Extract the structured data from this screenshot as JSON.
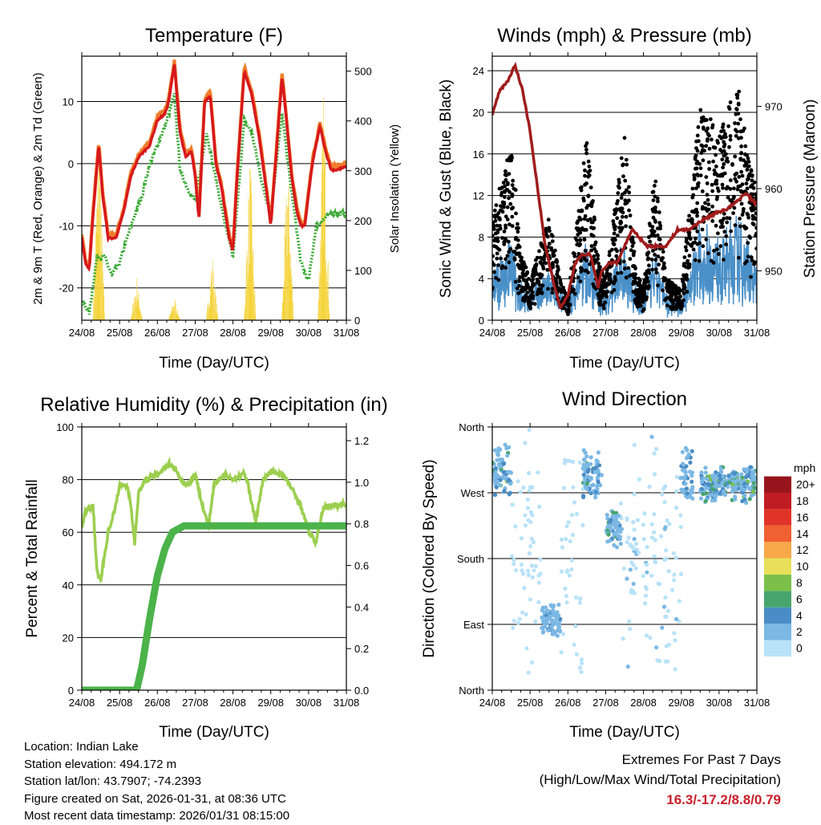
{
  "footer": {
    "location": "Location: Indian Lake",
    "elevation": "Station elevation: 494.172 m",
    "latlon": "Station lat/lon: 43.7907; -74.2393",
    "created": "Figure created on Sat, 2026-01-31, at 08:36 UTC",
    "recent": "Most recent data timestamp: 2026/01/31 08:15:00",
    "extremes_title": "Extremes For Past 7 Days",
    "extremes_sub": "(High/Low/Max Wind/Total Precipitation)",
    "extremes_value": "16.3/-17.2/8.8/0.79"
  },
  "chart_data": [
    {
      "type": "line",
      "title": "Temperature (F)",
      "xlabel": "Time (Day/UTC)",
      "ylabel": "2m & 9m T (Red, Orange) & 2m Td (Green)",
      "ylabel_right": "Solar Insolation (Yellow)",
      "xticks": [
        "24/08",
        "25/08",
        "26/08",
        "27/08",
        "28/08",
        "29/08",
        "30/08",
        "31/08"
      ],
      "xlim": [
        0,
        7
      ],
      "ylim": [
        -25.2,
        17.3
      ],
      "ylim_right": [
        0,
        530
      ],
      "yticks": [
        -20,
        -10,
        0,
        10
      ],
      "yticks_right": [
        0,
        100,
        200,
        300,
        400,
        500
      ],
      "colors": {
        "t2": "#d7191c",
        "t9": "#f07d2b",
        "td": "#3aaa35",
        "solar": "#f5d33a"
      },
      "series": [
        {
          "name": "2m T",
          "x": [
            0,
            0.1,
            0.2,
            0.3,
            0.45,
            0.55,
            0.7,
            0.9,
            1.1,
            1.3,
            1.5,
            1.8,
            2.0,
            2.2,
            2.3,
            2.45,
            2.6,
            2.75,
            2.9,
            3.0,
            3.1,
            3.25,
            3.4,
            3.55,
            3.7,
            3.9,
            4.0,
            4.1,
            4.3,
            4.5,
            4.7,
            4.9,
            5.0,
            5.1,
            5.3,
            5.4,
            5.55,
            5.7,
            5.8,
            5.9,
            6.1,
            6.3,
            6.45,
            6.6,
            6.75,
            7
          ],
          "y": [
            -12,
            -16,
            -17,
            -8,
            3,
            -5,
            -12,
            -12,
            -8,
            -2,
            1,
            3,
            7,
            8,
            10,
            16,
            5,
            1,
            2,
            -2,
            -9,
            10,
            11,
            0,
            -4,
            -12,
            -14,
            -3,
            15,
            11,
            4,
            -5,
            -10,
            -2,
            14,
            8,
            -2,
            -8,
            -10,
            -10,
            0,
            6,
            2,
            -1,
            -1,
            -0.5
          ]
        },
        {
          "name": "2m Td",
          "x": [
            0,
            0.2,
            0.4,
            0.6,
            0.8,
            1,
            1.3,
            1.6,
            1.8,
            2,
            2.2,
            2.45,
            2.6,
            2.8,
            3,
            3.3,
            3.5,
            3.8,
            4,
            4.3,
            4.5,
            4.8,
            5,
            5.3,
            5.5,
            5.8,
            6,
            6.2,
            6.4,
            6.6,
            7
          ],
          "y": [
            -22,
            -24,
            -15,
            -15,
            -18,
            -16,
            -10,
            -5,
            0,
            3,
            6,
            11,
            -1,
            -4,
            -6,
            5,
            -1,
            -10,
            -15,
            7,
            5,
            -4,
            -8,
            8,
            -2,
            -16,
            -19,
            -10,
            -9,
            -8,
            -8
          ]
        },
        {
          "name": "Solar",
          "peak_days": [
            0.45,
            1.45,
            2.45,
            3.45,
            4.45,
            5.45,
            6.4
          ],
          "peak_values": [
            420,
            90,
            50,
            140,
            350,
            350,
            490
          ]
        }
      ]
    },
    {
      "type": "scatter",
      "title": "Winds (mph) & Pressure (mb)",
      "xlabel": "Time (Day/UTC)",
      "ylabel": "Sonic Wind & Gust (Blue, Black)",
      "ylabel_right": "Station Pressure (Maroon)",
      "xticks": [
        "24/08",
        "25/08",
        "26/08",
        "27/08",
        "28/08",
        "29/08",
        "30/08",
        "31/08"
      ],
      "xlim": [
        0,
        7
      ],
      "ylim": [
        0,
        25.4
      ],
      "ylim_right": [
        944,
        976.1
      ],
      "yticks": [
        0,
        4,
        8,
        12,
        16,
        20,
        24
      ],
      "yticks_right": [
        950,
        960,
        970
      ],
      "colors": {
        "wind": "#4a90c8",
        "gust": "#000000",
        "pressure": "#a01c1c"
      },
      "series": [
        {
          "name": "Pressure",
          "x": [
            0,
            0.2,
            0.4,
            0.6,
            0.8,
            1,
            1.2,
            1.4,
            1.6,
            1.8,
            2.0,
            2.2,
            2.4,
            2.6,
            2.8,
            2.9,
            3.1,
            3.3,
            3.5,
            3.7,
            3.9,
            4.1,
            4.3,
            4.6,
            4.9,
            5.2,
            5.5,
            5.9,
            6.2,
            6.5,
            6.7,
            7
          ],
          "y": [
            969,
            972,
            973,
            975,
            972,
            967,
            960,
            953,
            949,
            945.5,
            947,
            951,
            952,
            952,
            948,
            950,
            951,
            951,
            953,
            955,
            954,
            953,
            953,
            953,
            955,
            955,
            956,
            957,
            957.5,
            958.5,
            959.5,
            958
          ]
        },
        {
          "name": "Gust envelope",
          "x": [
            0,
            0.5,
            0.8,
            1,
            1.5,
            1.8,
            2,
            2.5,
            2.8,
            3,
            3.5,
            3.8,
            4,
            4.3,
            4.6,
            5,
            5.5,
            6,
            6.5,
            7
          ],
          "y": [
            10,
            17,
            6,
            4,
            10,
            4,
            2,
            18,
            6,
            4,
            18,
            5,
            3,
            15,
            4,
            3,
            21,
            18,
            23,
            12
          ]
        }
      ]
    },
    {
      "type": "line",
      "title": "Relative Humidity (%) & Precipitation (in)",
      "xlabel": "Time (Day/UTC)",
      "ylabel": "Percent & Total Rainfall",
      "xticks": [
        "24/08",
        "25/08",
        "26/08",
        "27/08",
        "28/08",
        "29/08",
        "30/08",
        "31/08"
      ],
      "xlim": [
        0,
        7
      ],
      "ylim": [
        0,
        100
      ],
      "ylim_right": [
        0,
        1.266
      ],
      "yticks": [
        0,
        20,
        40,
        60,
        80,
        100
      ],
      "yticks_right": [
        "0.0",
        "0.2",
        "0.4",
        "0.6",
        "0.8",
        "1.0",
        "1.2"
      ],
      "colors": {
        "rh": "#9ccf4f",
        "precip": "#4bb34a"
      },
      "series": [
        {
          "name": "RH",
          "x": [
            0,
            0.1,
            0.3,
            0.4,
            0.5,
            0.7,
            0.9,
            1.0,
            1.2,
            1.3,
            1.4,
            1.5,
            1.7,
            2.0,
            2.3,
            2.5,
            2.6,
            2.8,
            3.0,
            3.2,
            3.35,
            3.5,
            3.8,
            4.0,
            4.3,
            4.4,
            4.6,
            4.8,
            5.0,
            5.3,
            5.5,
            5.8,
            6.0,
            6.2,
            6.4,
            6.7,
            7
          ],
          "y": [
            62,
            68,
            70,
            45,
            42,
            60,
            70,
            78,
            78,
            70,
            56,
            75,
            80,
            82,
            86,
            84,
            80,
            78,
            82,
            70,
            62,
            78,
            82,
            80,
            82,
            78,
            64,
            80,
            83,
            82,
            78,
            70,
            60,
            56,
            70,
            70,
            71
          ]
        },
        {
          "name": "Precip",
          "x": [
            0,
            1.45,
            1.6,
            1.8,
            2.0,
            2.2,
            2.4,
            2.7,
            7
          ],
          "y": [
            0,
            0,
            0.12,
            0.35,
            0.55,
            0.68,
            0.76,
            0.79,
            0.79
          ]
        }
      ]
    },
    {
      "type": "scatter",
      "title": "Wind Direction",
      "xlabel": "Time (Day/UTC)",
      "ylabel": "Direction (Colored By Speed)",
      "xticks": [
        "24/08",
        "25/08",
        "26/08",
        "27/08",
        "28/08",
        "29/08",
        "30/08",
        "31/08"
      ],
      "yticks": [
        "North",
        "East",
        "South",
        "West",
        "North"
      ],
      "ytick_values": [
        0,
        90,
        180,
        270,
        360
      ],
      "legend": {
        "title": "mph",
        "labels": [
          "0",
          "2",
          "4",
          "6",
          "8",
          "10",
          "12",
          "14",
          "16",
          "18",
          "20+"
        ],
        "colors": [
          "#b8e2f8",
          "#7bb8e4",
          "#4a8cc6",
          "#48a56e",
          "#7cc04a",
          "#e8e05a",
          "#f8a848",
          "#f06030",
          "#e03428",
          "#c01c24",
          "#98141c"
        ]
      },
      "clusters": [
        {
          "from": 0,
          "to": 0.5,
          "dir": [
            260,
            340
          ],
          "speed": [
            2,
            8
          ]
        },
        {
          "from": 0.5,
          "to": 1.3,
          "dir": [
            0,
            360
          ],
          "speed": [
            0,
            2
          ]
        },
        {
          "from": 1.3,
          "to": 1.8,
          "dir": [
            70,
            120
          ],
          "speed": [
            2,
            5
          ]
        },
        {
          "from": 1.8,
          "to": 2.4,
          "dir": [
            0,
            360
          ],
          "speed": [
            0,
            2
          ]
        },
        {
          "from": 2.4,
          "to": 2.9,
          "dir": [
            260,
            330
          ],
          "speed": [
            2,
            7
          ]
        },
        {
          "from": 3.0,
          "to": 3.4,
          "dir": [
            190,
            250
          ],
          "speed": [
            2,
            8
          ]
        },
        {
          "from": 3.4,
          "to": 5.0,
          "dir": [
            0,
            360
          ],
          "speed": [
            0,
            3
          ]
        },
        {
          "from": 5.0,
          "to": 5.3,
          "dir": [
            250,
            340
          ],
          "speed": [
            2,
            6
          ]
        },
        {
          "from": 5.5,
          "to": 7,
          "dir": [
            255,
            310
          ],
          "speed": [
            2,
            9
          ]
        }
      ]
    }
  ]
}
